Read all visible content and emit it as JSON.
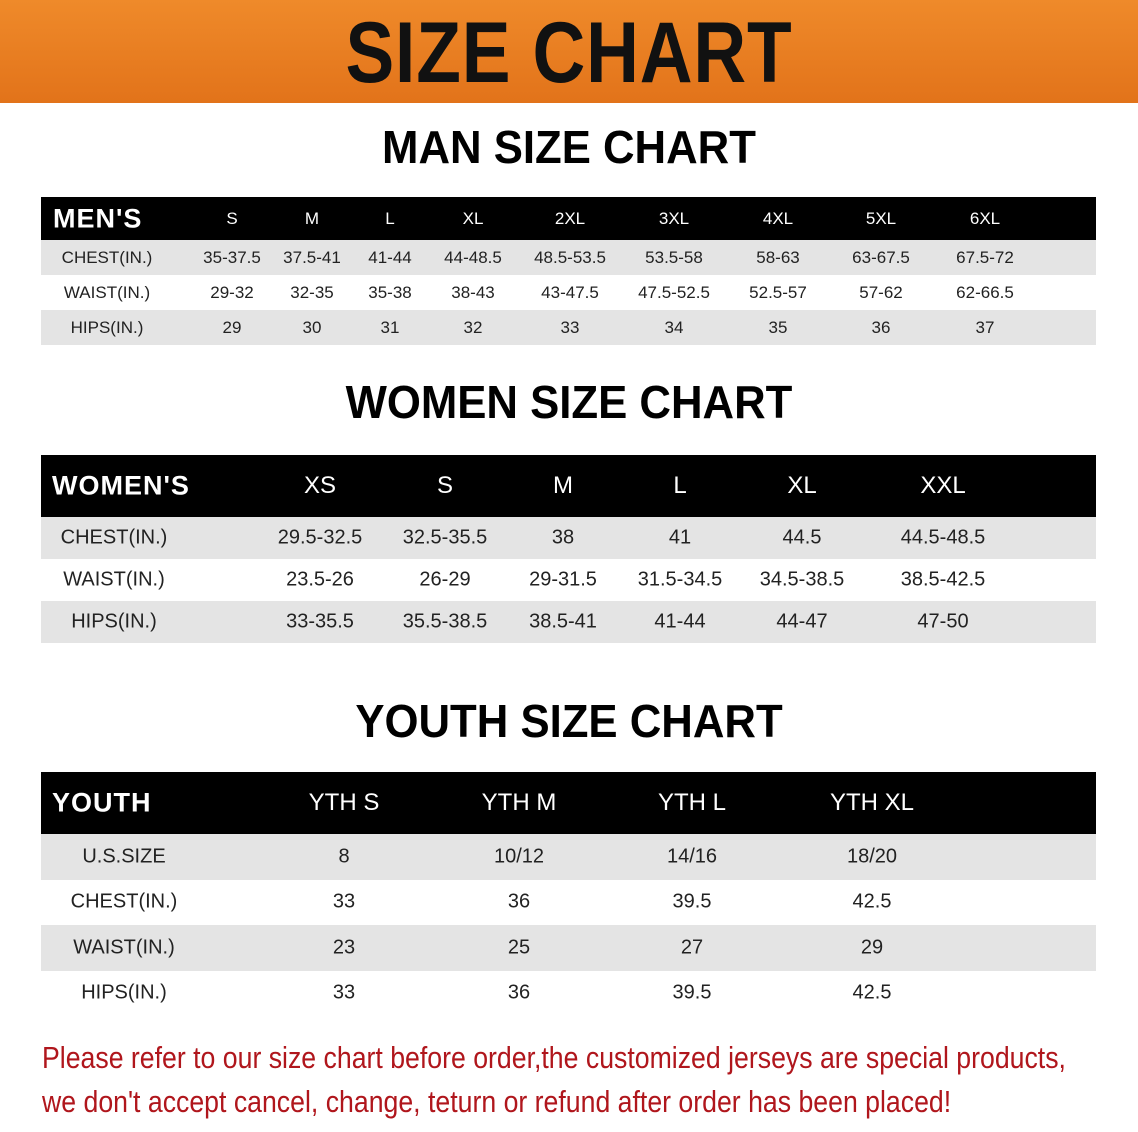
{
  "banner_title": "SIZE CHART",
  "men": {
    "title": "MAN SIZE CHART",
    "header": [
      "MEN'S",
      "S",
      "M",
      "L",
      "XL",
      "2XL",
      "3XL",
      "4XL",
      "5XL",
      "6XL"
    ],
    "rows": [
      [
        "CHEST(IN.)",
        "35-37.5",
        "37.5-41",
        "41-44",
        "44-48.5",
        "48.5-53.5",
        "53.5-58",
        "58-63",
        "63-67.5",
        "67.5-72"
      ],
      [
        "WAIST(IN.)",
        "29-32",
        "32-35",
        "35-38",
        "38-43",
        "43-47.5",
        "47.5-52.5",
        "52.5-57",
        "57-62",
        "62-66.5"
      ],
      [
        "HIPS(IN.)",
        "29",
        "30",
        "31",
        "32",
        "33",
        "34",
        "35",
        "36",
        "37"
      ]
    ]
  },
  "women": {
    "title": "WOMEN SIZE CHART",
    "header": [
      "WOMEN'S",
      "XS",
      "S",
      "M",
      "L",
      "XL",
      "XXL"
    ],
    "rows": [
      [
        "CHEST(IN.)",
        "29.5-32.5",
        "32.5-35.5",
        "38",
        "41",
        "44.5",
        "44.5-48.5"
      ],
      [
        "WAIST(IN.)",
        "23.5-26",
        "26-29",
        "29-31.5",
        "31.5-34.5",
        "34.5-38.5",
        "38.5-42.5"
      ],
      [
        "HIPS(IN.)",
        "33-35.5",
        "35.5-38.5",
        "38.5-41",
        "41-44",
        "44-47",
        "47-50"
      ]
    ]
  },
  "youth": {
    "title": "YOUTH SIZE CHART",
    "header": [
      "YOUTH",
      "YTH S",
      "YTH M",
      "YTH L",
      "YTH XL"
    ],
    "rows": [
      [
        "U.S.SIZE",
        "8",
        "10/12",
        "14/16",
        "18/20"
      ],
      [
        "CHEST(IN.)",
        "33",
        "36",
        "39.5",
        "42.5"
      ],
      [
        "WAIST(IN.)",
        "23",
        "25",
        "27",
        "29"
      ],
      [
        "HIPS(IN.)",
        "33",
        "36",
        "39.5",
        "42.5"
      ]
    ]
  },
  "notice": {
    "line1": "Please refer to our size chart before order,the customized jerseys are special products,",
    "line2": "we don't accept cancel, change, teturn or refund after order has been placed!"
  },
  "colors": {
    "banner": "#e8781a",
    "header_row": "#000000",
    "stripe": "#e4e4e4",
    "notice": "#b0161c"
  }
}
